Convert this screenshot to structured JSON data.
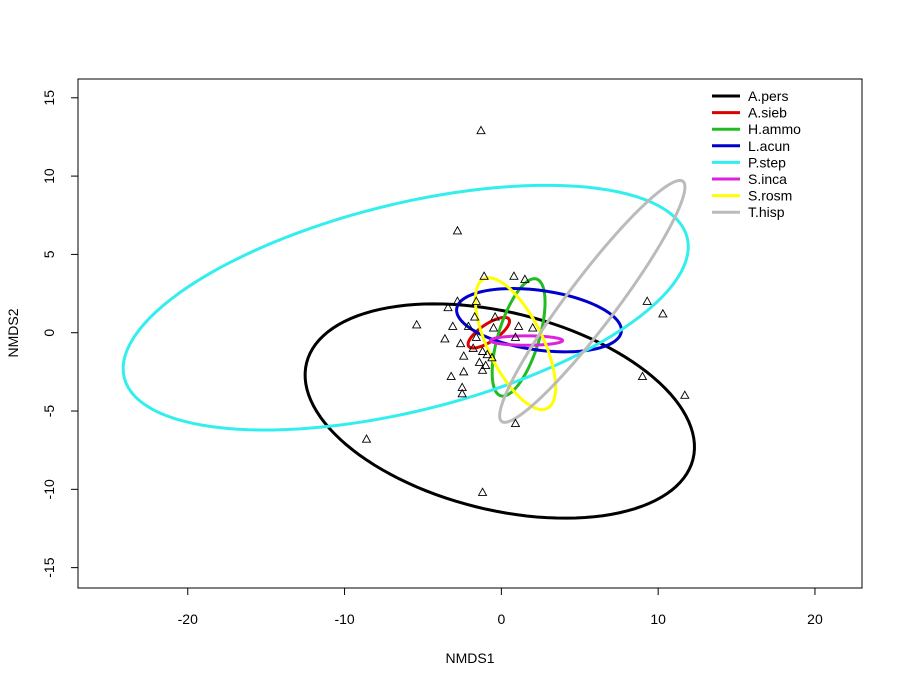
{
  "chart_data": {
    "type": "scatter",
    "xlabel": "NMDS1",
    "ylabel": "NMDS2",
    "xlim": [
      -27,
      23
    ],
    "ylim": [
      -16.3,
      16.2
    ],
    "xticks": [
      -20,
      -10,
      0,
      10,
      20
    ],
    "yticks": [
      -15,
      -10,
      -5,
      0,
      5,
      10,
      15
    ],
    "grid": false,
    "legend_position": "top-right",
    "points": [
      [
        -1.3,
        12.9
      ],
      [
        -2.8,
        6.5
      ],
      [
        0.8,
        3.6
      ],
      [
        1.5,
        3.4
      ],
      [
        -1.1,
        3.6
      ],
      [
        -1.6,
        2.0
      ],
      [
        -2.8,
        2.0
      ],
      [
        -3.4,
        1.6
      ],
      [
        -1.7,
        1.0
      ],
      [
        -0.4,
        1.0
      ],
      [
        -5.4,
        0.5
      ],
      [
        -3.1,
        0.4
      ],
      [
        -2.1,
        0.4
      ],
      [
        -0.5,
        0.3
      ],
      [
        1.1,
        0.4
      ],
      [
        2.0,
        0.3
      ],
      [
        -3.6,
        -0.4
      ],
      [
        -1.6,
        -0.3
      ],
      [
        0.9,
        -0.3
      ],
      [
        -2.6,
        -0.7
      ],
      [
        -1.8,
        -1.0
      ],
      [
        -1.2,
        -1.2
      ],
      [
        -2.4,
        -1.5
      ],
      [
        -0.9,
        -1.4
      ],
      [
        -0.6,
        -1.6
      ],
      [
        -1.4,
        -1.9
      ],
      [
        -1.0,
        -2.1
      ],
      [
        -1.2,
        -2.4
      ],
      [
        -2.4,
        -2.5
      ],
      [
        -3.2,
        -2.8
      ],
      [
        -2.5,
        -3.5
      ],
      [
        -2.5,
        -3.9
      ],
      [
        9.3,
        2.0
      ],
      [
        10.3,
        1.2
      ],
      [
        9.0,
        -2.8
      ],
      [
        11.7,
        -4.0
      ],
      [
        0.9,
        -5.8
      ],
      [
        -8.6,
        -6.8
      ],
      [
        -1.2,
        -10.2
      ]
    ],
    "series": [
      {
        "name": "A.pers",
        "color": "#000000",
        "cx": -0.1,
        "cy": -5.0,
        "rx": 12.7,
        "ry": 6.3,
        "angle": -14
      },
      {
        "name": "A.sieb",
        "color": "#dd0000",
        "cx": -0.8,
        "cy": 0.0,
        "rx": 1.55,
        "ry": 0.55,
        "angle": 34
      },
      {
        "name": "H.ammo",
        "color": "#22bb22",
        "cx": 1.1,
        "cy": -0.3,
        "rx": 3.9,
        "ry": 1.3,
        "angle": 73
      },
      {
        "name": "L.acun",
        "color": "#0000cc",
        "cx": 2.4,
        "cy": 0.8,
        "rx": 5.3,
        "ry": 1.9,
        "angle": -8
      },
      {
        "name": "P.step",
        "color": "#33eeee",
        "cx": -6.1,
        "cy": 1.6,
        "rx": 18.5,
        "ry": 6.6,
        "angle": 14
      },
      {
        "name": "S.inca",
        "color": "#dd22dd",
        "cx": 1.6,
        "cy": -0.5,
        "rx": 2.3,
        "ry": 0.3,
        "angle": 0
      },
      {
        "name": "S.rosm",
        "color": "#ffff00",
        "cx": 0.9,
        "cy": -0.7,
        "rx": 4.6,
        "ry": 1.75,
        "angle": -64
      },
      {
        "name": "T.hisp",
        "color": "#bbbbbb",
        "cx": 5.8,
        "cy": 2.0,
        "rx": 9.6,
        "ry": 1.55,
        "angle": 53
      }
    ]
  }
}
